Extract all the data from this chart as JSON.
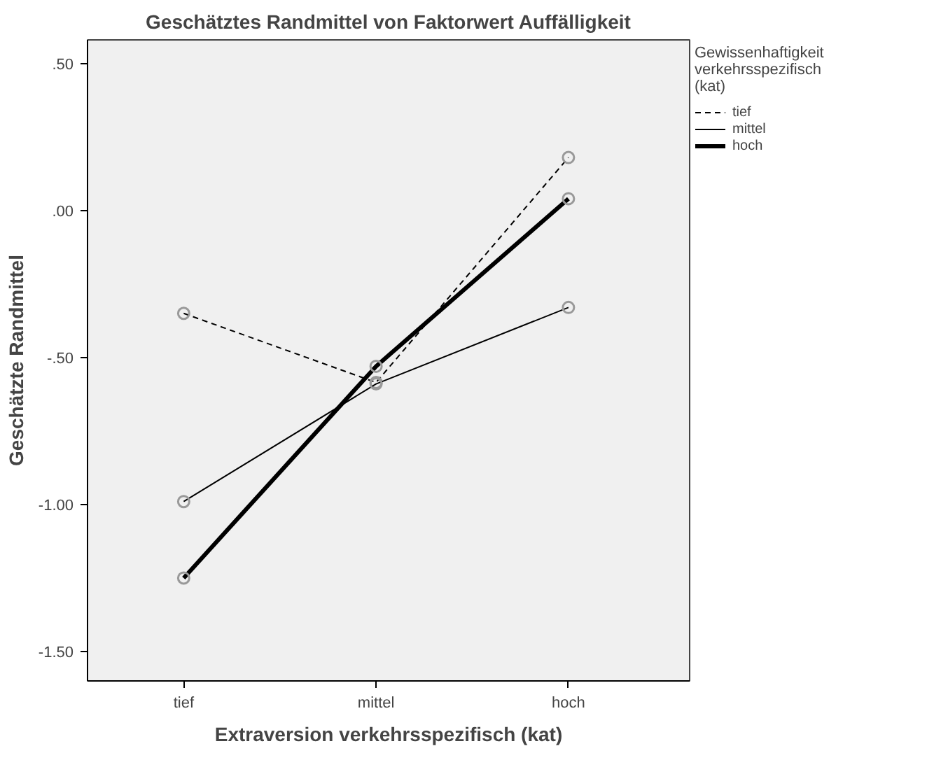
{
  "chart_data": {
    "type": "line",
    "title": "Geschätztes Randmittel von Faktorwert Auffälligkeit",
    "xlabel": "Extraversion verkehrsspezifisch (kat)",
    "ylabel": "Geschätzte Randmittel",
    "legend_title": "Gewissenhaftigkeit\nverkehrsspezifisch\n(kat)",
    "categories": [
      "tief",
      "mittel",
      "hoch"
    ],
    "series": [
      {
        "name": "tief",
        "color": "#000000",
        "line_style": "dashed",
        "values": [
          -0.35,
          -0.585,
          0.18
        ]
      },
      {
        "name": "mittel",
        "color": "#000000",
        "line_style": "solid",
        "values": [
          -0.99,
          -0.59,
          -0.33
        ]
      },
      {
        "name": "hoch",
        "color": "#000000",
        "line_style": "solid",
        "values": [
          -1.25,
          -0.53,
          0.04
        ]
      }
    ],
    "ylim": [
      -1.6,
      0.58
    ],
    "yticks": [
      {
        "value": 0.5,
        "label": ".50"
      },
      {
        "value": 0,
        "label": ".00"
      },
      {
        "value": -0.5,
        "label": "-.50"
      },
      {
        "value": -1,
        "label": "-1.00"
      },
      {
        "value": -1.5,
        "label": "-1.50"
      }
    ],
    "grid": false,
    "legend": "top right",
    "marker": "circle"
  }
}
